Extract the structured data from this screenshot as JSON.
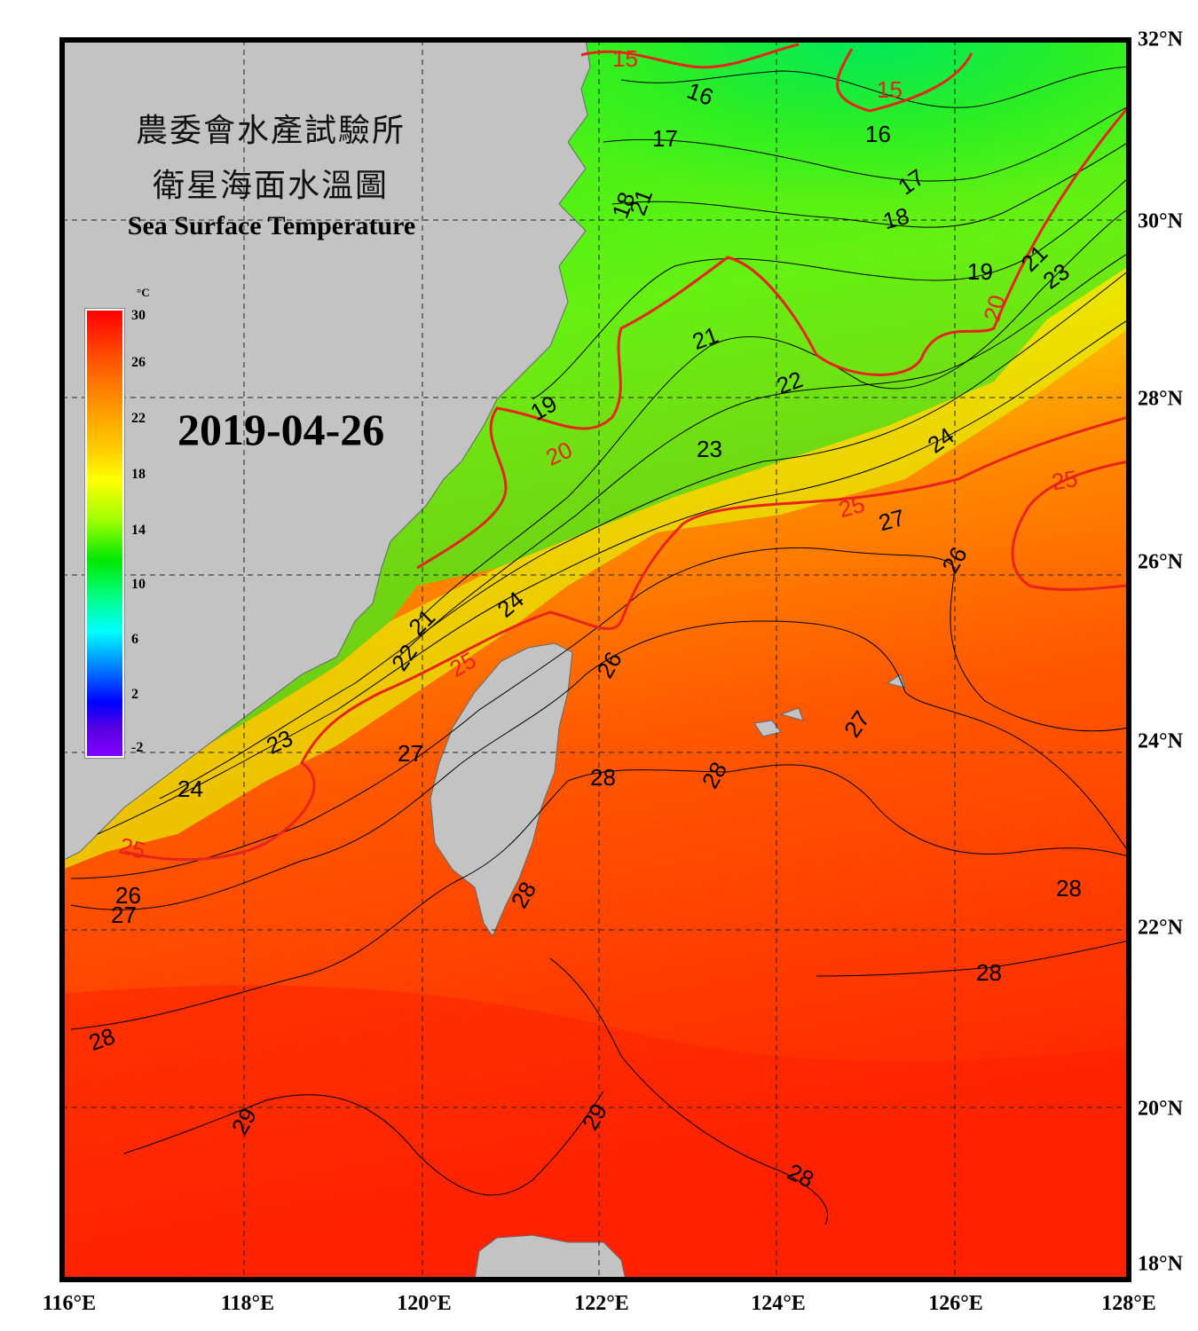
{
  "title": {
    "org_zh": "農委會水產試驗所",
    "product_zh": "衛星海面水溫圖",
    "product_en": "Sea Surface Temperature"
  },
  "date": "2019-04-26",
  "colorbar": {
    "unit": "°C",
    "ticks": [
      "30",
      "26",
      "22",
      "18",
      "14",
      "10",
      "6",
      "2",
      "-2"
    ],
    "range": [
      -2,
      30
    ]
  },
  "axes": {
    "lon_labels": [
      "116°E",
      "118°E",
      "120°E",
      "122°E",
      "124°E",
      "126°E",
      "128°E"
    ],
    "lat_labels": [
      "32°N",
      "30°N",
      "28°N",
      "26°N",
      "24°N",
      "22°N",
      "20°N",
      "18°N"
    ],
    "lon_range": [
      116,
      128
    ],
    "lat_range": [
      18,
      32
    ]
  },
  "contours": {
    "major_color": "#e8231c",
    "minor_color": "#000000",
    "major_labels": [
      "15",
      "15",
      "20",
      "20",
      "25",
      "25",
      "25",
      "25"
    ],
    "minor_labels": [
      "16",
      "16",
      "17",
      "17",
      "18",
      "18",
      "19",
      "19",
      "21",
      "21",
      "21",
      "21",
      "22",
      "22",
      "23",
      "23",
      "23",
      "24",
      "24",
      "24",
      "26",
      "26",
      "26",
      "27",
      "27",
      "27",
      "27",
      "28",
      "28",
      "28",
      "28",
      "28",
      "28",
      "28",
      "29",
      "29"
    ]
  },
  "colors": {
    "land": "#c3c3c3",
    "frame": "#000000"
  }
}
